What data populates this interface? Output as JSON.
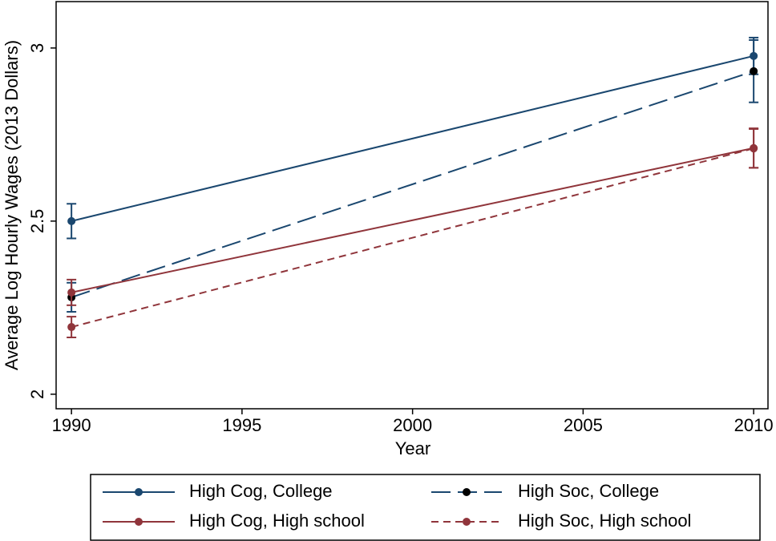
{
  "chart_data": {
    "type": "line",
    "x_label": "Year",
    "y_label": "Average Log Hourly Wages (2013 Dollars)",
    "x": [
      1990,
      2010
    ],
    "xlim": [
      1989.55,
      2010.42
    ],
    "xticks": [
      1990,
      1995,
      2000,
      2005,
      2010
    ],
    "ylim": [
      1.958,
      3.134
    ],
    "yticks": [
      2,
      2.5,
      3
    ],
    "series": [
      {
        "name": "High Cog, College",
        "color": "#1a476f",
        "marker_color": "#1a476f",
        "dash": "solid",
        "values": [
          2.5,
          2.977
        ],
        "errors": [
          0.05,
          0.053
        ]
      },
      {
        "name": "High Soc, College",
        "color": "#1a476f",
        "marker_color": "#000000",
        "dash": "long",
        "values": [
          2.28,
          2.933
        ],
        "errors": [
          0.042,
          0.09
        ]
      },
      {
        "name": "High Cog, High school",
        "color": "#90353b",
        "marker_color": "#90353b",
        "dash": "solid",
        "values": [
          2.294,
          2.711
        ],
        "errors": [
          0.037,
          0.057
        ]
      },
      {
        "name": "High Soc, High school",
        "color": "#90353b",
        "marker_color": "#90353b",
        "dash": "short",
        "values": [
          2.194,
          2.71
        ],
        "errors": [
          0.03,
          0.056
        ]
      }
    ]
  }
}
